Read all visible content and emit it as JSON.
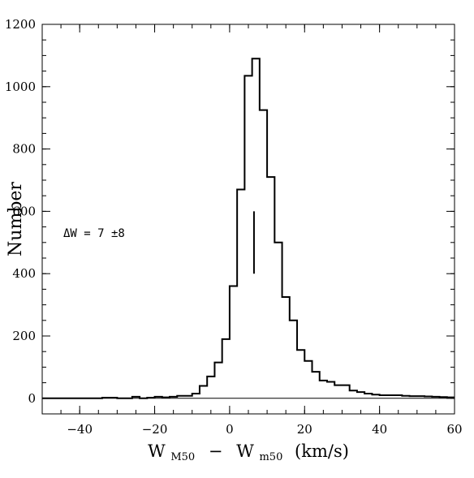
{
  "chart_data": {
    "type": "histogram",
    "xlabel": {
      "main1": "W",
      "sub1": "M50",
      "op": "−",
      "main2": "W",
      "sub2": "m50",
      "unit": "(km/s)"
    },
    "ylabel": "Number",
    "xlim": [
      -50,
      60
    ],
    "ylim": [
      -50,
      1200
    ],
    "xticks": [
      -40,
      -20,
      0,
      20,
      40,
      60
    ],
    "yticks": [
      0,
      200,
      400,
      600,
      800,
      1000,
      1200
    ],
    "x_minor_step": 5,
    "y_minor_step": 50,
    "bin_width": 2,
    "bin_start": -50,
    "counts": [
      0,
      0,
      0,
      0,
      0,
      0,
      0,
      0,
      2,
      2,
      0,
      0,
      5,
      0,
      2,
      5,
      3,
      5,
      8,
      8,
      15,
      40,
      70,
      115,
      190,
      360,
      670,
      1035,
      1090,
      925,
      710,
      500,
      325,
      250,
      155,
      120,
      85,
      57,
      53,
      42,
      42,
      25,
      20,
      15,
      12,
      10,
      10,
      10,
      8,
      7,
      7,
      6,
      5,
      4,
      3
    ],
    "marker": {
      "x": 6.5,
      "y_low": 400,
      "y_high": 600
    },
    "annotation": "ΔW = 7 ±8",
    "baseline": 0
  }
}
